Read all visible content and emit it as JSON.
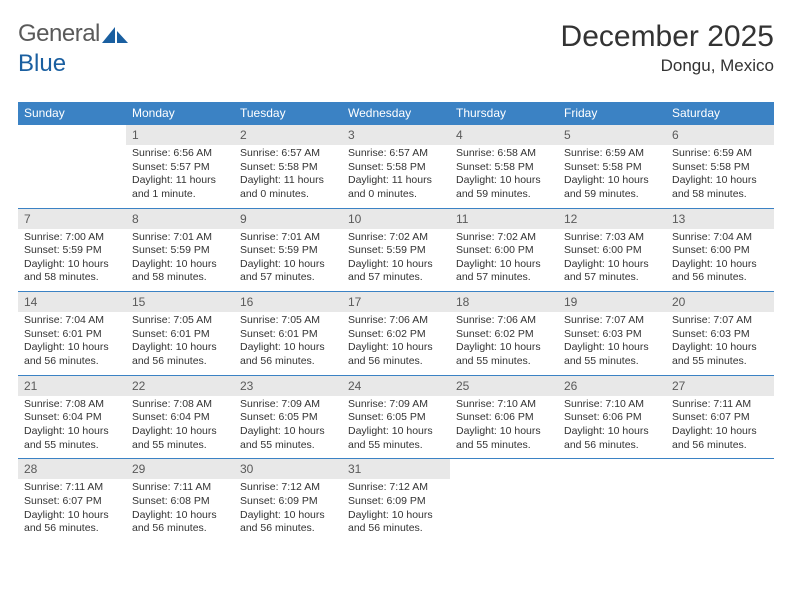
{
  "logo": {
    "text_a": "General",
    "text_b": "Blue"
  },
  "title": "December 2025",
  "location": "Dongu, Mexico",
  "colors": {
    "header_bg": "#3b82c4",
    "header_fg": "#ffffff",
    "daynum_bg": "#e8e8e8",
    "daynum_fg": "#5a5a5a",
    "text": "#333333",
    "rule": "#3b82c4",
    "logo_gray": "#5a5a5a",
    "logo_blue": "#1a5fa0"
  },
  "day_headers": [
    "Sunday",
    "Monday",
    "Tuesday",
    "Wednesday",
    "Thursday",
    "Friday",
    "Saturday"
  ],
  "weeks": [
    [
      null,
      {
        "n": "1",
        "sr": "6:56 AM",
        "ss": "5:57 PM",
        "dl": "11 hours and 1 minute."
      },
      {
        "n": "2",
        "sr": "6:57 AM",
        "ss": "5:58 PM",
        "dl": "11 hours and 0 minutes."
      },
      {
        "n": "3",
        "sr": "6:57 AM",
        "ss": "5:58 PM",
        "dl": "11 hours and 0 minutes."
      },
      {
        "n": "4",
        "sr": "6:58 AM",
        "ss": "5:58 PM",
        "dl": "10 hours and 59 minutes."
      },
      {
        "n": "5",
        "sr": "6:59 AM",
        "ss": "5:58 PM",
        "dl": "10 hours and 59 minutes."
      },
      {
        "n": "6",
        "sr": "6:59 AM",
        "ss": "5:58 PM",
        "dl": "10 hours and 58 minutes."
      }
    ],
    [
      {
        "n": "7",
        "sr": "7:00 AM",
        "ss": "5:59 PM",
        "dl": "10 hours and 58 minutes."
      },
      {
        "n": "8",
        "sr": "7:01 AM",
        "ss": "5:59 PM",
        "dl": "10 hours and 58 minutes."
      },
      {
        "n": "9",
        "sr": "7:01 AM",
        "ss": "5:59 PM",
        "dl": "10 hours and 57 minutes."
      },
      {
        "n": "10",
        "sr": "7:02 AM",
        "ss": "5:59 PM",
        "dl": "10 hours and 57 minutes."
      },
      {
        "n": "11",
        "sr": "7:02 AM",
        "ss": "6:00 PM",
        "dl": "10 hours and 57 minutes."
      },
      {
        "n": "12",
        "sr": "7:03 AM",
        "ss": "6:00 PM",
        "dl": "10 hours and 57 minutes."
      },
      {
        "n": "13",
        "sr": "7:04 AM",
        "ss": "6:00 PM",
        "dl": "10 hours and 56 minutes."
      }
    ],
    [
      {
        "n": "14",
        "sr": "7:04 AM",
        "ss": "6:01 PM",
        "dl": "10 hours and 56 minutes."
      },
      {
        "n": "15",
        "sr": "7:05 AM",
        "ss": "6:01 PM",
        "dl": "10 hours and 56 minutes."
      },
      {
        "n": "16",
        "sr": "7:05 AM",
        "ss": "6:01 PM",
        "dl": "10 hours and 56 minutes."
      },
      {
        "n": "17",
        "sr": "7:06 AM",
        "ss": "6:02 PM",
        "dl": "10 hours and 56 minutes."
      },
      {
        "n": "18",
        "sr": "7:06 AM",
        "ss": "6:02 PM",
        "dl": "10 hours and 55 minutes."
      },
      {
        "n": "19",
        "sr": "7:07 AM",
        "ss": "6:03 PM",
        "dl": "10 hours and 55 minutes."
      },
      {
        "n": "20",
        "sr": "7:07 AM",
        "ss": "6:03 PM",
        "dl": "10 hours and 55 minutes."
      }
    ],
    [
      {
        "n": "21",
        "sr": "7:08 AM",
        "ss": "6:04 PM",
        "dl": "10 hours and 55 minutes."
      },
      {
        "n": "22",
        "sr": "7:08 AM",
        "ss": "6:04 PM",
        "dl": "10 hours and 55 minutes."
      },
      {
        "n": "23",
        "sr": "7:09 AM",
        "ss": "6:05 PM",
        "dl": "10 hours and 55 minutes."
      },
      {
        "n": "24",
        "sr": "7:09 AM",
        "ss": "6:05 PM",
        "dl": "10 hours and 55 minutes."
      },
      {
        "n": "25",
        "sr": "7:10 AM",
        "ss": "6:06 PM",
        "dl": "10 hours and 55 minutes."
      },
      {
        "n": "26",
        "sr": "7:10 AM",
        "ss": "6:06 PM",
        "dl": "10 hours and 56 minutes."
      },
      {
        "n": "27",
        "sr": "7:11 AM",
        "ss": "6:07 PM",
        "dl": "10 hours and 56 minutes."
      }
    ],
    [
      {
        "n": "28",
        "sr": "7:11 AM",
        "ss": "6:07 PM",
        "dl": "10 hours and 56 minutes."
      },
      {
        "n": "29",
        "sr": "7:11 AM",
        "ss": "6:08 PM",
        "dl": "10 hours and 56 minutes."
      },
      {
        "n": "30",
        "sr": "7:12 AM",
        "ss": "6:09 PM",
        "dl": "10 hours and 56 minutes."
      },
      {
        "n": "31",
        "sr": "7:12 AM",
        "ss": "6:09 PM",
        "dl": "10 hours and 56 minutes."
      },
      null,
      null,
      null
    ]
  ],
  "labels": {
    "sunrise": "Sunrise:",
    "sunset": "Sunset:",
    "daylight": "Daylight:"
  }
}
